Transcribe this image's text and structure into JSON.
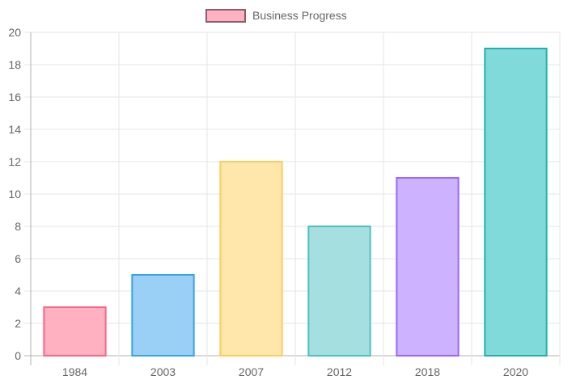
{
  "chart_data": {
    "type": "bar",
    "categories": [
      "1984",
      "2003",
      "2007",
      "2012",
      "2018",
      "2020"
    ],
    "series": [
      {
        "name": "Business Progress",
        "values": [
          3,
          5,
          12,
          8,
          11,
          19
        ]
      }
    ],
    "ylim": [
      0,
      20
    ],
    "yticks": [
      "0",
      "2",
      "4",
      "6",
      "8",
      "10",
      "12",
      "14",
      "16",
      "18",
      "20"
    ],
    "grid": true,
    "legend_position": "top",
    "bar_colors": [
      "#ffb1c1",
      "#9ad0f5",
      "#ffe6aa",
      "#a5dfdf",
      "#ccb2ff",
      "#80dada"
    ],
    "bar_border_colors": [
      "#ff6384",
      "#36a2eb",
      "#ffcd56",
      "#4bc0c0",
      "#9966ff",
      "#20b2aa"
    ],
    "legend_color": "#ffb1c1",
    "legend_border_color": "#8a5b6b"
  }
}
